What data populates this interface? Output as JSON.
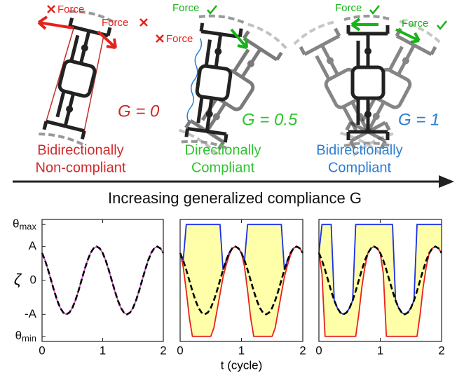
{
  "diagram": {
    "robots": [
      {
        "forces": [
          "Force",
          "Force"
        ],
        "gain": "G = 0",
        "label": [
          "Bidirectionally",
          "Non-compliant"
        ]
      },
      {
        "forces": [
          "Force",
          "Force"
        ],
        "gain": "G = 0.5",
        "label": [
          "Directionally",
          "Compliant"
        ]
      },
      {
        "forces": [
          "Force",
          "Force"
        ],
        "gain": "G = 1",
        "label": [
          "Bidirectionally",
          "Compliant"
        ]
      }
    ],
    "arrow_label": "Increasing generalized compliance G"
  },
  "chart_data": [
    {
      "type": "line",
      "ylabel": "ζ",
      "x": [
        0,
        0.05,
        0.1,
        0.15,
        0.2,
        0.25,
        0.3,
        0.35,
        0.4,
        0.45,
        0.5,
        0.55,
        0.6,
        0.65,
        0.7,
        0.75,
        0.8,
        0.85,
        0.9,
        0.95,
        1,
        1.05,
        1.1,
        1.15,
        1.2,
        1.25,
        1.3,
        1.35,
        1.4,
        1.45,
        1.5,
        1.55,
        1.6,
        1.65,
        1.7,
        1.75,
        1.8,
        1.85,
        1.9,
        1.95,
        2
      ],
      "series": [
        {
          "color": "#d24fd2",
          "dash": false,
          "values": [
            0.81,
            0.59,
            0.31,
            0,
            -0.31,
            -0.59,
            -0.81,
            -0.95,
            -1,
            -0.95,
            -0.81,
            -0.59,
            -0.31,
            0,
            0.31,
            0.59,
            0.81,
            0.95,
            1,
            0.95,
            0.81,
            0.59,
            0.31,
            0,
            -0.31,
            -0.59,
            -0.81,
            -0.95,
            -1,
            -0.95,
            -0.81,
            -0.59,
            -0.31,
            0,
            0.31,
            0.59,
            0.81,
            0.95,
            1,
            0.95,
            0.81
          ]
        },
        {
          "color": "#000000",
          "dash": true,
          "values": [
            0.81,
            0.59,
            0.31,
            0,
            -0.31,
            -0.59,
            -0.81,
            -0.95,
            -1,
            -0.95,
            -0.81,
            -0.59,
            -0.31,
            0,
            0.31,
            0.59,
            0.81,
            0.95,
            1,
            0.95,
            0.81,
            0.59,
            0.31,
            0,
            -0.31,
            -0.59,
            -0.81,
            -0.95,
            -1,
            -0.95,
            -0.81,
            -0.59,
            -0.31,
            0,
            0.31,
            0.59,
            0.81,
            0.95,
            1,
            0.95,
            0.81
          ]
        }
      ],
      "xlim": [
        0,
        2
      ],
      "xticks": [
        0,
        1,
        2
      ],
      "ylim": [
        -1.8,
        1.8
      ],
      "yticks": [
        {
          "value": -1.65,
          "label": "θmin"
        },
        {
          "value": -1,
          "label": "-A"
        },
        0,
        {
          "value": 1,
          "label": "A"
        },
        {
          "value": 1.65,
          "label": "θmax"
        }
      ]
    },
    {
      "type": "line",
      "xlabel": "t (cycle)",
      "band_color": "#ffffaa",
      "x": [
        0,
        0.05,
        0.1,
        0.15,
        0.2,
        0.25,
        0.3,
        0.35,
        0.4,
        0.45,
        0.5,
        0.55,
        0.6,
        0.65,
        0.7,
        0.75,
        0.8,
        0.85,
        0.9,
        0.95,
        1,
        1.05,
        1.1,
        1.15,
        1.2,
        1.25,
        1.3,
        1.35,
        1.4,
        1.45,
        1.5,
        1.55,
        1.6,
        1.65,
        1.7,
        1.75,
        1.8,
        1.85,
        1.9,
        1.95,
        2
      ],
      "series": [
        {
          "color": "#1a2fe6",
          "dash": false,
          "values": [
            0.81,
            0.59,
            1.65,
            1.65,
            1.65,
            1.65,
            1.65,
            1.65,
            1.65,
            1.65,
            1.65,
            1.65,
            1.65,
            1.65,
            0.31,
            0.59,
            0.81,
            0.95,
            1,
            0.95,
            0.81,
            0.59,
            1.65,
            1.65,
            1.65,
            1.65,
            1.65,
            1.65,
            1.65,
            1.65,
            1.65,
            1.65,
            1.65,
            1.65,
            0.31,
            0.59,
            0.81,
            0.95,
            1,
            0.95,
            0.81
          ]
        },
        {
          "color": "#e8201e",
          "dash": false,
          "values": [
            0.81,
            0.4,
            -0.3,
            -1.1,
            -1.65,
            -1.65,
            -1.65,
            -1.65,
            -1.65,
            -1.65,
            -1.65,
            -1.4,
            -0.9,
            -0.4,
            0.1,
            0.45,
            0.75,
            0.95,
            1,
            0.95,
            0.81,
            0.4,
            -0.3,
            -1.1,
            -1.65,
            -1.65,
            -1.65,
            -1.65,
            -1.65,
            -1.65,
            -1.65,
            -1.4,
            -0.9,
            -0.4,
            0.1,
            0.45,
            0.75,
            0.95,
            1,
            0.95,
            0.81
          ]
        },
        {
          "color": "#000000",
          "dash": true,
          "values": [
            0.81,
            0.59,
            0.31,
            0,
            -0.31,
            -0.59,
            -0.81,
            -0.95,
            -1,
            -0.95,
            -0.81,
            -0.59,
            -0.31,
            0,
            0.31,
            0.59,
            0.81,
            0.95,
            1,
            0.95,
            0.81,
            0.59,
            0.31,
            0,
            -0.31,
            -0.59,
            -0.81,
            -0.95,
            -1,
            -0.95,
            -0.81,
            -0.59,
            -0.31,
            0,
            0.31,
            0.59,
            0.81,
            0.95,
            1,
            0.95,
            0.81
          ]
        }
      ],
      "xlim": [
        0,
        2
      ],
      "xticks": [
        0,
        1,
        2
      ],
      "ylim": [
        -1.8,
        1.8
      ]
    },
    {
      "type": "line",
      "band_color": "#ffffaa",
      "x": [
        0,
        0.05,
        0.1,
        0.15,
        0.2,
        0.25,
        0.3,
        0.35,
        0.4,
        0.45,
        0.5,
        0.55,
        0.6,
        0.65,
        0.7,
        0.75,
        0.8,
        0.85,
        0.9,
        0.95,
        1,
        1.05,
        1.1,
        1.15,
        1.2,
        1.25,
        1.3,
        1.35,
        1.4,
        1.45,
        1.5,
        1.55,
        1.6,
        1.65,
        1.7,
        1.75,
        1.8,
        1.85,
        1.9,
        1.95,
        2
      ],
      "series": [
        {
          "color": "#1a2fe6",
          "dash": false,
          "values": [
            0.81,
            1.65,
            1.65,
            1.65,
            1.65,
            -0.59,
            -0.81,
            -0.95,
            -1,
            -0.95,
            -0.81,
            -0.59,
            1.65,
            1.65,
            1.65,
            1.65,
            1.65,
            1.65,
            1.65,
            1.65,
            1.65,
            1.65,
            1.65,
            1.65,
            1.65,
            -0.59,
            -0.81,
            -0.95,
            -1,
            -0.95,
            -0.81,
            -0.59,
            1.65,
            1.65,
            1.65,
            1.65,
            1.65,
            1.65,
            1.65,
            1.65,
            1.65
          ]
        },
        {
          "color": "#e8201e",
          "dash": false,
          "values": [
            0.81,
            0.2,
            -1.65,
            -1.65,
            -1.65,
            -1.65,
            -1.65,
            -1.65,
            -1.65,
            -1.65,
            -1.65,
            -1.65,
            -1.65,
            -1,
            -0.2,
            0.4,
            0.81,
            0.95,
            1,
            0.95,
            0.81,
            0.2,
            -1.65,
            -1.65,
            -1.65,
            -1.65,
            -1.65,
            -1.65,
            -1.65,
            -1.65,
            -1.65,
            -1.65,
            -1.65,
            -1,
            -0.2,
            0.4,
            0.81,
            0.95,
            1,
            0.95,
            0.81
          ]
        },
        {
          "color": "#000000",
          "dash": true,
          "values": [
            0.81,
            0.59,
            0.31,
            0,
            -0.31,
            -0.59,
            -0.81,
            -0.95,
            -1,
            -0.95,
            -0.81,
            -0.59,
            -0.31,
            0,
            0.31,
            0.59,
            0.81,
            0.95,
            1,
            0.95,
            0.81,
            0.59,
            0.31,
            0,
            -0.31,
            -0.59,
            -0.81,
            -0.95,
            -1,
            -0.95,
            -0.81,
            -0.59,
            -0.31,
            0,
            0.31,
            0.59,
            0.81,
            0.95,
            1,
            0.95,
            0.81
          ]
        }
      ],
      "xlim": [
        0,
        2
      ],
      "xticks": [
        0,
        1,
        2
      ],
      "ylim": [
        -1.8,
        1.8
      ]
    }
  ]
}
